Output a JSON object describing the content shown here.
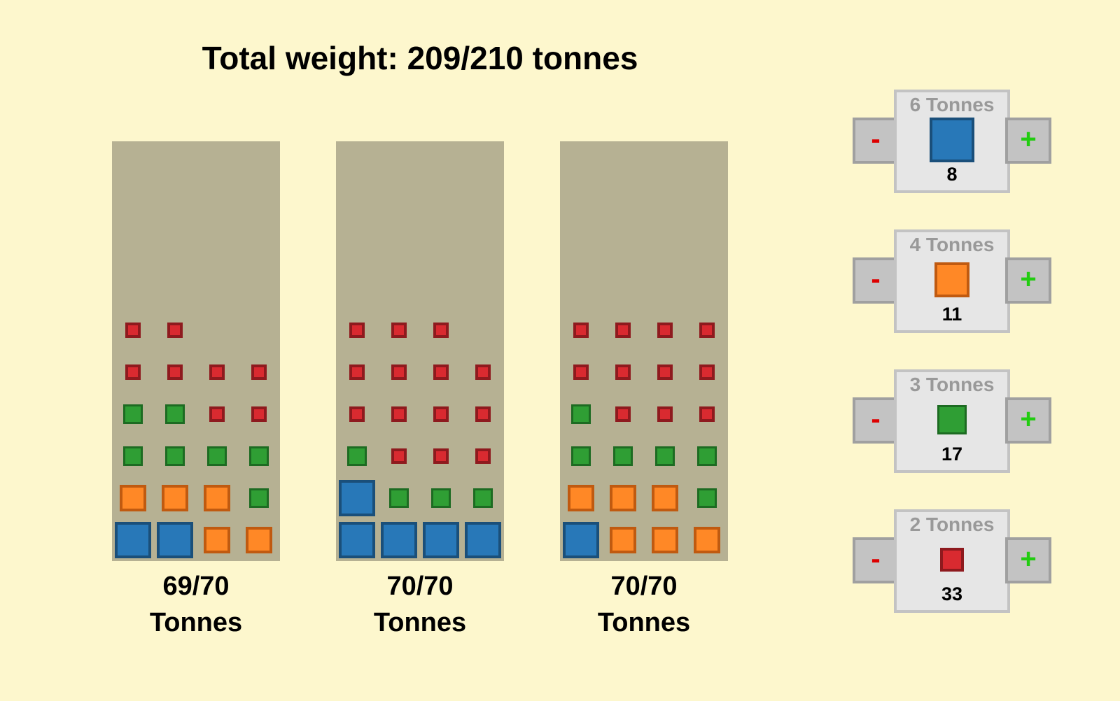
{
  "header": {
    "total_label": "Total weight: 209/210 tonnes"
  },
  "trucks": [
    {
      "load_text": "69/70",
      "unit_text": "Tonnes",
      "load": 69,
      "capacity": 70,
      "stacks": [
        [
          "6",
          "6",
          "4",
          "4"
        ],
        [
          "4",
          "4",
          "4",
          "3"
        ],
        [
          "3",
          "3",
          "3",
          "3"
        ],
        [
          "3",
          "3",
          "2",
          "2"
        ],
        [
          "2",
          "2",
          "2",
          "2"
        ],
        [
          "2",
          "2"
        ]
      ]
    },
    {
      "load_text": "70/70",
      "unit_text": "Tonnes",
      "load": 70,
      "capacity": 70,
      "stacks": [
        [
          "6",
          "6",
          "6",
          "6"
        ],
        [
          "6",
          "3",
          "3",
          "3"
        ],
        [
          "3",
          "2",
          "2",
          "2"
        ],
        [
          "2",
          "2",
          "2",
          "2"
        ],
        [
          "2",
          "2",
          "2",
          "2"
        ],
        [
          "2",
          "2",
          "2"
        ]
      ]
    },
    {
      "load_text": "70/70",
      "unit_text": "Tonnes",
      "load": 70,
      "capacity": 70,
      "stacks": [
        [
          "6",
          "4",
          "4",
          "4"
        ],
        [
          "4",
          "4",
          "4",
          "3"
        ],
        [
          "3",
          "3",
          "3",
          "3"
        ],
        [
          "3",
          "2",
          "2",
          "2"
        ],
        [
          "2",
          "2",
          "2",
          "2"
        ],
        [
          "2",
          "2",
          "2",
          "2"
        ]
      ]
    }
  ],
  "controls": [
    {
      "weight": 6,
      "title": "6 Tonnes",
      "count": "8",
      "minus_label": "-",
      "plus_label": "+"
    },
    {
      "weight": 4,
      "title": "4 Tonnes",
      "count": "11",
      "minus_label": "-",
      "plus_label": "+"
    },
    {
      "weight": 3,
      "title": "3 Tonnes",
      "count": "17",
      "minus_label": "-",
      "plus_label": "+"
    },
    {
      "weight": 2,
      "title": "2 Tonnes",
      "count": "33",
      "minus_label": "-",
      "plus_label": "+"
    }
  ],
  "block_colors": {
    "6": {
      "fill": "#2878b8",
      "border": "#1a4f7a",
      "name": "blue"
    },
    "4": {
      "fill": "#ff8826",
      "border": "#c05a10",
      "name": "orange"
    },
    "3": {
      "fill": "#2f9e34",
      "border": "#1d6b22",
      "name": "green"
    },
    "2": {
      "fill": "#d92a30",
      "border": "#8e1a1e",
      "name": "red"
    }
  }
}
